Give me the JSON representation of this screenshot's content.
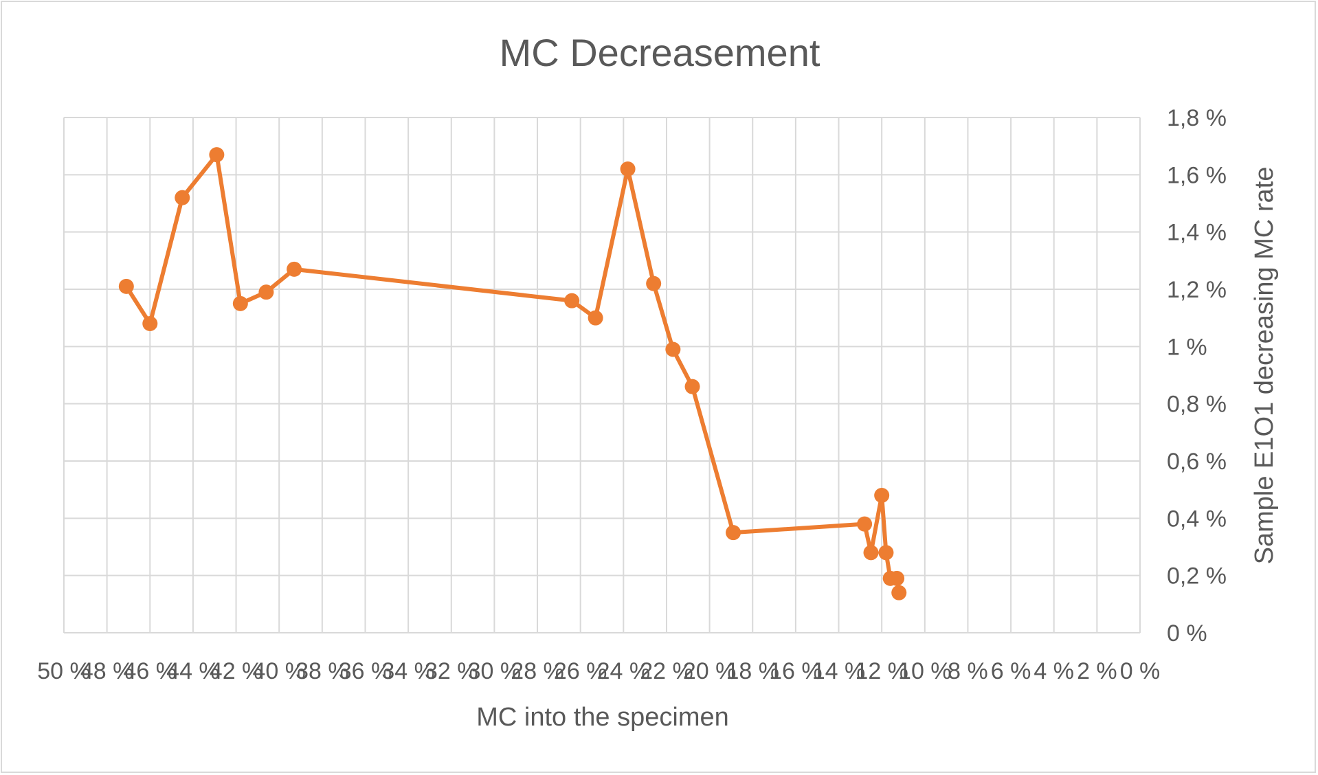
{
  "chart_data": {
    "type": "line",
    "title": "MC Decreasement",
    "xlabel": "MC into the specimen",
    "ylabel": "Sample E1O1 decreasing MC rate",
    "x_reversed": true,
    "xlim": [
      0,
      50
    ],
    "ylim": [
      0,
      1.8
    ],
    "x_tick_labels": [
      "50 %",
      "48 %",
      "46 %",
      "44 %",
      "42 %",
      "40 %",
      "38 %",
      "36 %",
      "34 %",
      "32 %",
      "30 %",
      "28 %",
      "26 %",
      "24 %",
      "22 %",
      "20 %",
      "18 %",
      "16 %",
      "14 %",
      "12 %",
      "10 %",
      "8 %",
      "6 %",
      "4 %",
      "2 %",
      "0 %"
    ],
    "y_tick_labels": [
      "0 %",
      "0,2 %",
      "0,4 %",
      "0,6 %",
      "0,8 %",
      "1 %",
      "1,2 %",
      "1,4 %",
      "1,6 %",
      "1,8 %"
    ],
    "y_axis_side": "right",
    "grid": true,
    "legend": "none",
    "series": [
      {
        "color": "#ED7D31",
        "x": [
          47.1,
          46.0,
          44.5,
          42.9,
          41.8,
          40.6,
          39.3,
          26.4,
          25.3,
          23.8,
          22.6,
          21.7,
          20.8,
          18.9,
          12.8,
          12.5,
          12.0,
          11.8,
          11.6,
          11.3,
          11.2
        ],
        "y": [
          1.21,
          1.08,
          1.52,
          1.67,
          1.15,
          1.19,
          1.27,
          1.16,
          1.1,
          1.62,
          1.22,
          0.99,
          0.86,
          0.35,
          0.38,
          0.28,
          0.48,
          0.28,
          0.19,
          0.19,
          0.14
        ]
      }
    ]
  }
}
